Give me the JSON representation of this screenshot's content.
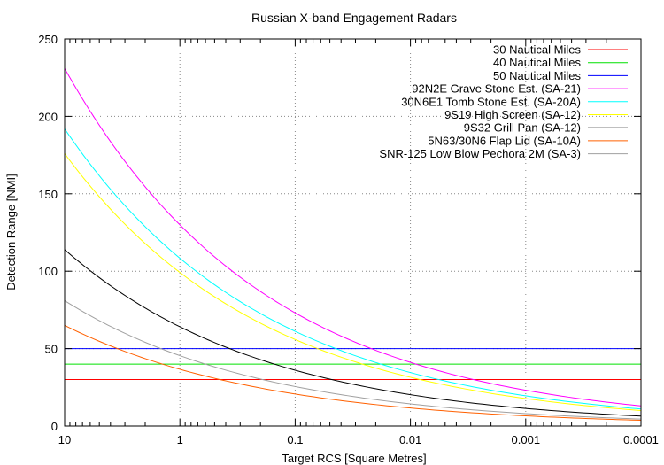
{
  "chart_data": {
    "type": "line",
    "title": "Russian X-band Engagement Radars",
    "xlabel": "Target RCS [Square Metres]",
    "ylabel": "Detection Range [NMI]",
    "x_scale": "log",
    "x_reversed": true,
    "xlim": [
      10,
      0.0001
    ],
    "ylim": [
      0,
      250
    ],
    "grid": true,
    "legend_position": "top-right",
    "x_ticks": [
      {
        "value": 10,
        "label": "10"
      },
      {
        "value": 1,
        "label": "1"
      },
      {
        "value": 0.1,
        "label": "0.1"
      },
      {
        "value": 0.01,
        "label": "0.01"
      },
      {
        "value": 0.001,
        "label": "0.001"
      },
      {
        "value": 0.0001,
        "label": "0.0001"
      }
    ],
    "y_ticks": [
      0,
      50,
      100,
      150,
      200,
      250
    ],
    "series": [
      {
        "name": "30 Nautical Miles",
        "color": "#ff0000",
        "kind": "constant",
        "values": [
          30,
          30,
          30,
          30,
          30,
          30
        ]
      },
      {
        "name": "40 Nautical Miles",
        "color": "#00e000",
        "kind": "constant",
        "values": [
          40,
          40,
          40,
          40,
          40,
          40
        ]
      },
      {
        "name": "50 Nautical Miles",
        "color": "#0000ff",
        "kind": "constant",
        "values": [
          50,
          50,
          50,
          50,
          50,
          50
        ]
      },
      {
        "name": "92N2E Grave Stone Est. (SA-21)",
        "color": "#ff00ff",
        "kind": "curve",
        "values": [
          231,
          130,
          73,
          41,
          23,
          13
        ]
      },
      {
        "name": "30N6E1 Tomb Stone Est. (SA-20A)",
        "color": "#00ffff",
        "kind": "curve",
        "values": [
          192,
          108,
          61,
          34,
          19,
          11
        ]
      },
      {
        "name": "9S19 High Screen (SA-12)",
        "color": "#ffff00",
        "kind": "curve",
        "values": [
          176,
          99,
          56,
          31,
          18,
          10
        ]
      },
      {
        "name": "9S32 Grill Pan (SA-12)",
        "color": "#000000",
        "kind": "curve",
        "values": [
          114,
          64,
          36,
          20,
          11,
          6.4
        ]
      },
      {
        "name": "5N63/30N6 Flap Lid (SA-10A)",
        "color": "#ff6000",
        "kind": "curve",
        "values": [
          65,
          37,
          21,
          12,
          6.5,
          3.7
        ]
      },
      {
        "name": "SNR-125 Low Blow Pechora 2M (SA-3)",
        "color": "#a0a0a0",
        "kind": "curve",
        "values": [
          81,
          45,
          25,
          14,
          8,
          4.5
        ]
      }
    ]
  }
}
